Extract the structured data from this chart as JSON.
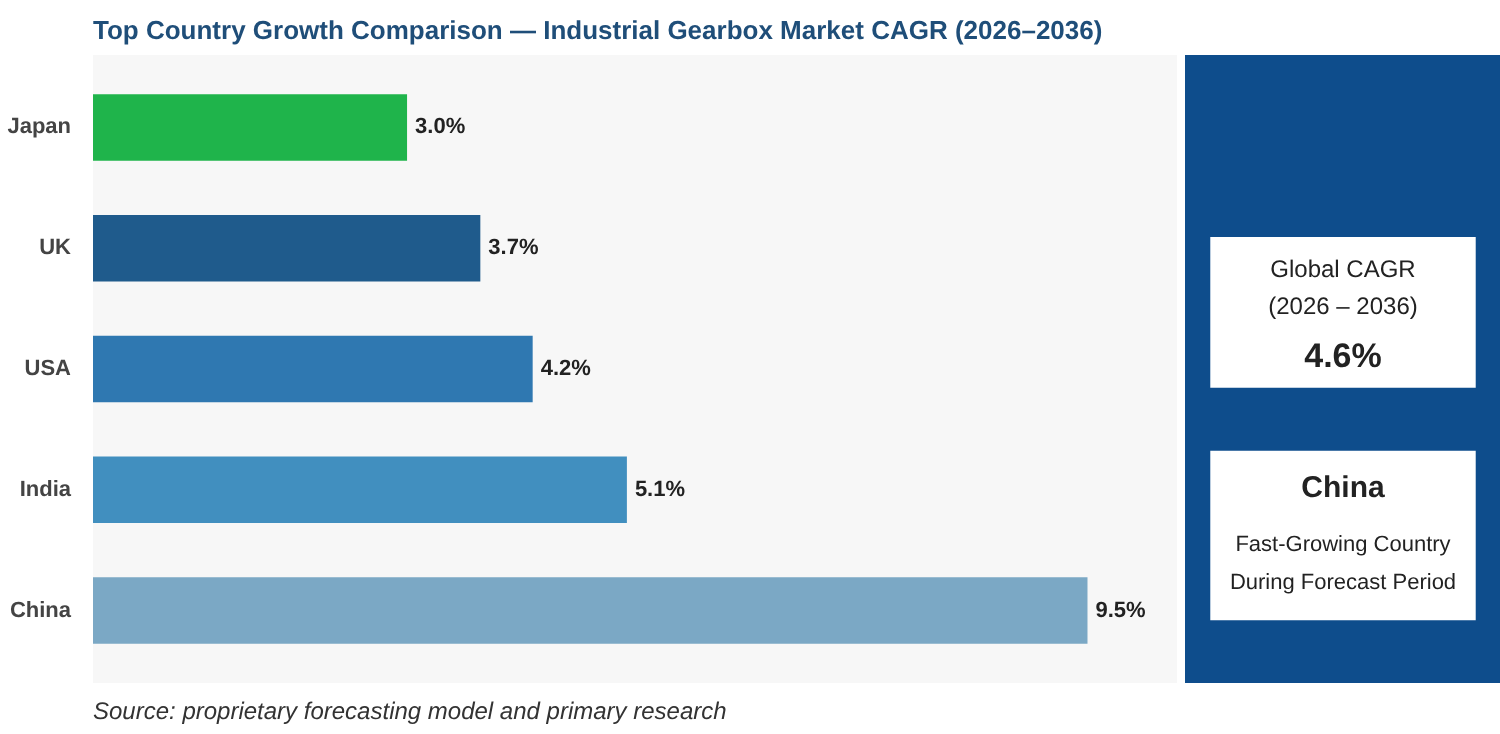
{
  "chart_data": {
    "type": "bar",
    "orientation": "horizontal",
    "title": "Top Country Growth Comparison — Industrial Gearbox Market CAGR (2026–2036)",
    "categories": [
      "Japan",
      "UK",
      "USA",
      "India",
      "China"
    ],
    "values": [
      3.0,
      3.7,
      4.2,
      5.1,
      9.5
    ],
    "value_labels": [
      "3.0%",
      "3.7%",
      "4.2%",
      "5.1%",
      "9.5%"
    ],
    "colors": [
      "#1fb44b",
      "#1f5b8c",
      "#2f78b1",
      "#418fbf",
      "#7ba8c5"
    ],
    "grid": false,
    "annotations": [
      "Source: proprietary forecasting model and primary research",
      "Global CAGR",
      "(2026 – 2036)",
      "4.6%",
      "China",
      "Fast-Growing Country",
      "During Forecast Period"
    ]
  }
}
